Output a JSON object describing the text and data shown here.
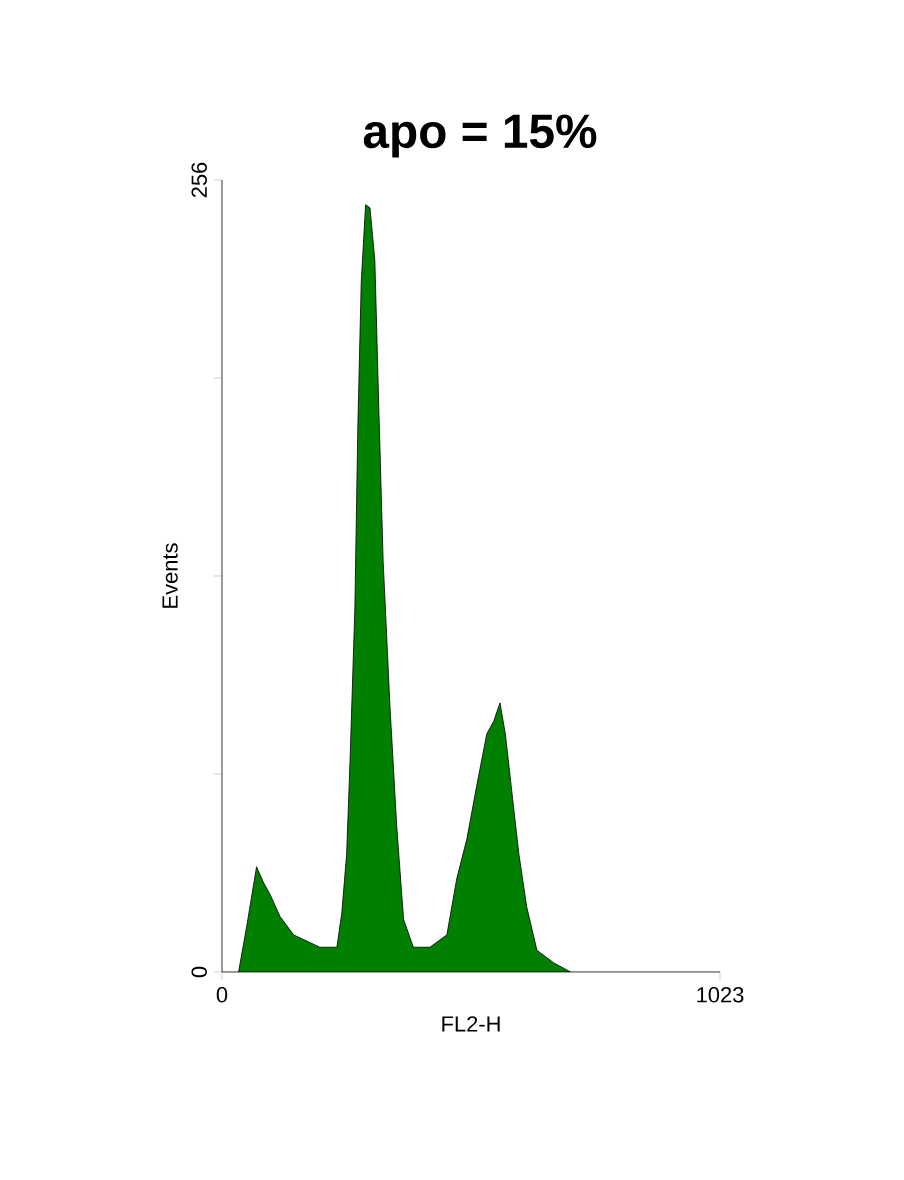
{
  "chart_data": {
    "type": "area",
    "title": "apo = 15%",
    "xlabel": "FL2-H",
    "ylabel": "Events",
    "color": "#007f00",
    "x": [
      34,
      51,
      71,
      85,
      99,
      119,
      147,
      174,
      201,
      236,
      246,
      256,
      263,
      273,
      279,
      286,
      295,
      304,
      314,
      322,
      331,
      345,
      359,
      373,
      393,
      427,
      462,
      482,
      503,
      523,
      544,
      558,
      571,
      582,
      597,
      610,
      626,
      647,
      681,
      716
    ],
    "values": [
      0,
      15,
      34,
      29,
      25,
      18,
      12,
      10,
      8,
      8,
      19,
      38,
      68,
      118,
      176,
      223,
      248,
      247,
      230,
      183,
      133,
      86,
      47,
      17,
      8,
      8,
      12,
      30,
      43,
      60,
      77,
      81,
      87,
      77,
      56,
      38,
      21,
      7,
      3,
      0
    ],
    "xlim": [
      0,
      1023
    ],
    "ylim": [
      0,
      256
    ],
    "xticks": [
      0,
      1023
    ],
    "yticks": [
      0,
      {
        "value": 64,
        "label": null
      },
      {
        "value": 128,
        "label": null
      },
      {
        "value": 192,
        "label": null
      },
      256
    ],
    "grid": false
  }
}
